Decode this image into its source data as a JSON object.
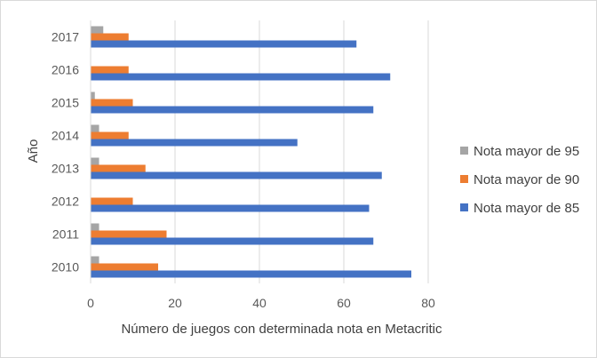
{
  "chart_data": {
    "type": "bar",
    "orientation": "horizontal",
    "categories": [
      "2010",
      "2011",
      "2012",
      "2013",
      "2014",
      "2015",
      "2016",
      "2017"
    ],
    "series": [
      {
        "name": "Nota mayor de 85",
        "color": "#4472C4",
        "values": [
          76,
          67,
          66,
          69,
          49,
          67,
          71,
          63
        ]
      },
      {
        "name": "Nota mayor de 90",
        "color": "#ED7D31",
        "values": [
          16,
          18,
          10,
          13,
          9,
          10,
          9,
          9
        ]
      },
      {
        "name": "Nota mayor de 95",
        "color": "#A5A5A5",
        "values": [
          2,
          2,
          0,
          2,
          2,
          1,
          0,
          3
        ]
      }
    ],
    "xlabel": "Número de juegos con determinada nota en Metacritic",
    "ylabel": "Año",
    "xlim": [
      0,
      80
    ],
    "xticks": [
      "0",
      "20",
      "40",
      "60",
      "80"
    ],
    "grid": "vertical",
    "legend_position": "right",
    "legend_order": [
      "Nota mayor de 95",
      "Nota mayor de 90",
      "Nota mayor de 85"
    ]
  }
}
